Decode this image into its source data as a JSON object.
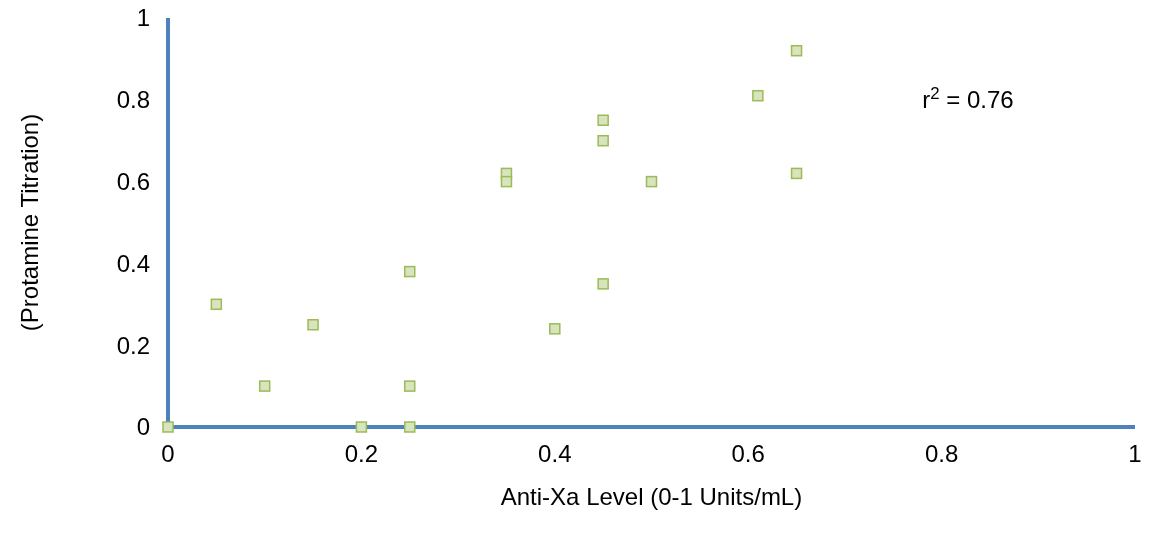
{
  "chart_data": {
    "type": "scatter",
    "xlabel": "Anti-Xa Level (0-1 Units/mL)",
    "ylabel": "(Protamine Titration)",
    "x": [
      0,
      0.05,
      0.1,
      0.15,
      0.2,
      0.25,
      0.25,
      0.25,
      0.35,
      0.35,
      0.4,
      0.45,
      0.45,
      0.45,
      0.5,
      0.61,
      0.65,
      0.65
    ],
    "series": [
      {
        "color": "#9bbb59",
        "values": [
          0,
          0.3,
          0.1,
          0.25,
          0,
          0.38,
          0.1,
          0,
          0.62,
          0.6,
          0.24,
          0.75,
          0.7,
          0.35,
          0.6,
          0.81,
          0.92,
          0.62
        ]
      }
    ],
    "xlim": [
      0,
      1
    ],
    "ylim": [
      0,
      1
    ],
    "xticks": [
      0,
      0.2,
      0.4,
      0.6,
      0.8,
      1
    ],
    "yticks": [
      0,
      0.2,
      0.4,
      0.6,
      0.8,
      1
    ],
    "marker": "square",
    "grid": false,
    "annotations": [
      "r$^{2}$ = 0.76"
    ]
  }
}
